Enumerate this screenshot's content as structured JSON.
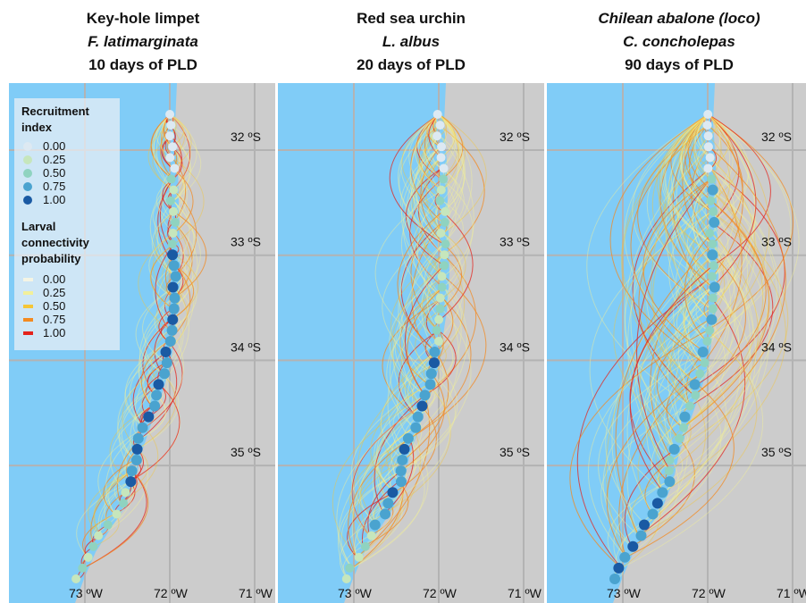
{
  "panels": [
    {
      "common_name": "Key-hole limpet",
      "species": "F. latimarginata",
      "pld": "10 days of PLD",
      "spread": 0.45
    },
    {
      "common_name": "Red sea urchin",
      "species": "L. albus",
      "pld": "20 days of PLD",
      "spread": 0.9
    },
    {
      "common_name": "Chilean abalone (loco)",
      "species": "C. concholepas",
      "pld": "90 days of PLD",
      "spread": 2.0
    }
  ],
  "lat_labels": [
    "32 ºS",
    "33 ºS",
    "34 ºS",
    "35 ºS"
  ],
  "lat_values": [
    32,
    33,
    34,
    35
  ],
  "lon_labels": [
    "73 ºW",
    "72 ºW",
    "71 ºW"
  ],
  "lon_values": [
    73,
    72,
    71
  ],
  "legend": {
    "recruitment_title": "Recruitment index",
    "recruitment_items": [
      {
        "value": "0.00",
        "color": "#dde9f2"
      },
      {
        "value": "0.25",
        "color": "#c6e6bc"
      },
      {
        "value": "0.50",
        "color": "#8fd3c0"
      },
      {
        "value": "0.75",
        "color": "#4aa3cf"
      },
      {
        "value": "1.00",
        "color": "#1a5aa3"
      }
    ],
    "connectivity_title": "Larval connectivity probability",
    "connectivity_items": [
      {
        "value": "0.00",
        "color": "#f4f4e4"
      },
      {
        "value": "0.25",
        "color": "#f2f09a"
      },
      {
        "value": "0.50",
        "color": "#f5c637"
      },
      {
        "value": "0.75",
        "color": "#f38a20"
      },
      {
        "value": "1.00",
        "color": "#e4231c"
      }
    ]
  },
  "colors": {
    "ocean": "#80ccf7",
    "land": "#cccccc",
    "grid": "#b3b3b3"
  }
}
